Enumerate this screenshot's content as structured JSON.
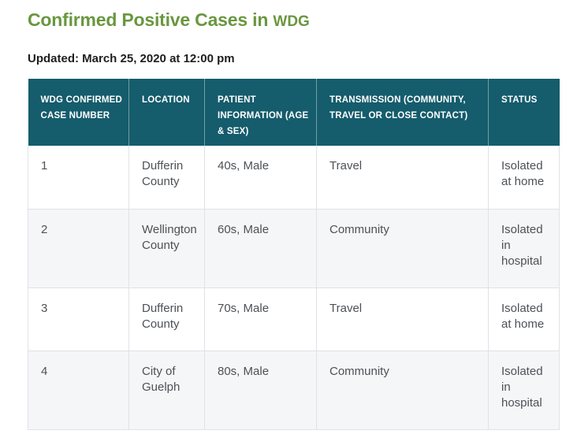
{
  "page": {
    "title_main": "Confirmed Positive Cases in ",
    "title_org": "WDG",
    "updated": "Updated: March 25, 2020 at 12:00 pm"
  },
  "colors": {
    "title_green": "#699740",
    "header_teal": "#155c6c",
    "row_alt_gray": "#f4f6f8",
    "cell_border": "#e0e2e6",
    "body_text": "#4d5156"
  },
  "chart_data": {
    "type": "table",
    "title": "Confirmed Positive Cases in WDG",
    "columns": [
      "WDG CONFIRMED CASE NUMBER",
      "LOCATION",
      "PATIENT INFORMATION (AGE & SEX)",
      "TRANSMISSION (COMMUNITY, TRAVEL OR CLOSE CONTACT)",
      "STATUS"
    ],
    "rows": [
      [
        "1",
        "Dufferin County",
        "40s, Male",
        "Travel",
        "Isolated at home"
      ],
      [
        "2",
        "Wellington County",
        "60s, Male",
        "Community",
        "Isolated in hospital"
      ],
      [
        "3",
        "Dufferin County",
        "70s, Male",
        "Travel",
        "Isolated at home"
      ],
      [
        "4",
        "City of Guelph",
        "80s, Male",
        "Community",
        "Isolated in hospital"
      ]
    ]
  }
}
